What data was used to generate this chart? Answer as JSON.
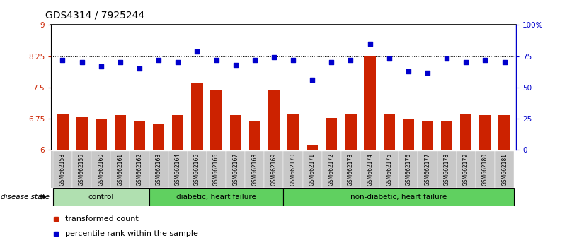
{
  "title": "GDS4314 / 7925244",
  "samples": [
    "GSM662158",
    "GSM662159",
    "GSM662160",
    "GSM662161",
    "GSM662162",
    "GSM662163",
    "GSM662164",
    "GSM662165",
    "GSM662166",
    "GSM662167",
    "GSM662168",
    "GSM662169",
    "GSM662170",
    "GSM662171",
    "GSM662172",
    "GSM662173",
    "GSM662174",
    "GSM662175",
    "GSM662176",
    "GSM662177",
    "GSM662178",
    "GSM662179",
    "GSM662180",
    "GSM662181"
  ],
  "bar_values": [
    6.85,
    6.78,
    6.75,
    6.83,
    6.7,
    6.63,
    6.83,
    7.62,
    7.45,
    6.83,
    6.68,
    7.45,
    6.87,
    6.13,
    6.77,
    6.87,
    8.25,
    6.87,
    6.73,
    6.7,
    6.7,
    6.85,
    6.83,
    6.83
  ],
  "percentile_values": [
    72,
    70,
    67,
    70,
    65,
    72,
    70,
    79,
    72,
    68,
    72,
    74,
    72,
    56,
    70,
    72,
    85,
    73,
    63,
    62,
    73,
    70,
    72,
    70
  ],
  "bar_color": "#cc2200",
  "dot_color": "#0000cc",
  "ylim_left": [
    6,
    9
  ],
  "ylim_right": [
    0,
    100
  ],
  "yticks_left": [
    6,
    6.75,
    7.5,
    8.25,
    9
  ],
  "yticks_right": [
    0,
    25,
    50,
    75,
    100
  ],
  "ytick_labels_left": [
    "6",
    "6.75",
    "7.5",
    "8.25",
    "9"
  ],
  "ytick_labels_right": [
    "0",
    "25",
    "50",
    "75",
    "100%"
  ],
  "hlines": [
    6.75,
    7.5,
    8.25
  ],
  "bar_width": 0.6,
  "tick_label_bg": "#c8c8c8",
  "group_defs": [
    {
      "label": "control",
      "start": 0,
      "end": 4,
      "color": "#b0e0b0"
    },
    {
      "label": "diabetic, heart failure",
      "start": 5,
      "end": 11,
      "color": "#60d060"
    },
    {
      "label": "non-diabetic, heart failure",
      "start": 12,
      "end": 23,
      "color": "#60d060"
    }
  ],
  "disease_state_label": "disease state",
  "legend_items": [
    {
      "label": "transformed count",
      "color": "#cc2200"
    },
    {
      "label": "percentile rank within the sample",
      "color": "#0000cc"
    }
  ]
}
